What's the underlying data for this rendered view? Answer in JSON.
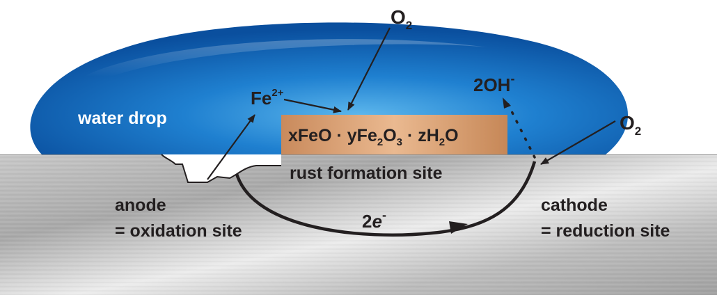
{
  "labels": {
    "water_drop": "water drop",
    "fe_ion_base": "Fe",
    "fe_ion_charge": "2+",
    "o2_top_base": "O",
    "o2_top_sub": "2",
    "o2_right_base": "O",
    "o2_right_sub": "2",
    "hydroxide_base": "2OH",
    "hydroxide_charge": "-",
    "rust_formula": {
      "p1": "xFeO",
      "dot1": "·",
      "p2": "yFe",
      "s2": "2",
      "p3": "O",
      "s3": "3",
      "dot2": "·",
      "p4": "zH",
      "s4": "2",
      "p5": "O"
    },
    "rust_site": "rust formation site",
    "anode_line1": "anode",
    "anode_line2": "= oxidation site",
    "cathode_line1": "cathode",
    "cathode_line2": "= reduction site",
    "electron_count": "2",
    "electron_symbol": "e",
    "electron_charge": "-"
  },
  "colors": {
    "water_dark": "#0a4f9e",
    "water_mid": "#1a78c9",
    "water_light": "#5cb6ec",
    "metal_light": "#e4e4e4",
    "metal_dark": "#9a9a9a",
    "rust_light": "#e6b48c",
    "rust_dark": "#b9784d",
    "ink": "#231f20",
    "white": "#ffffff"
  }
}
